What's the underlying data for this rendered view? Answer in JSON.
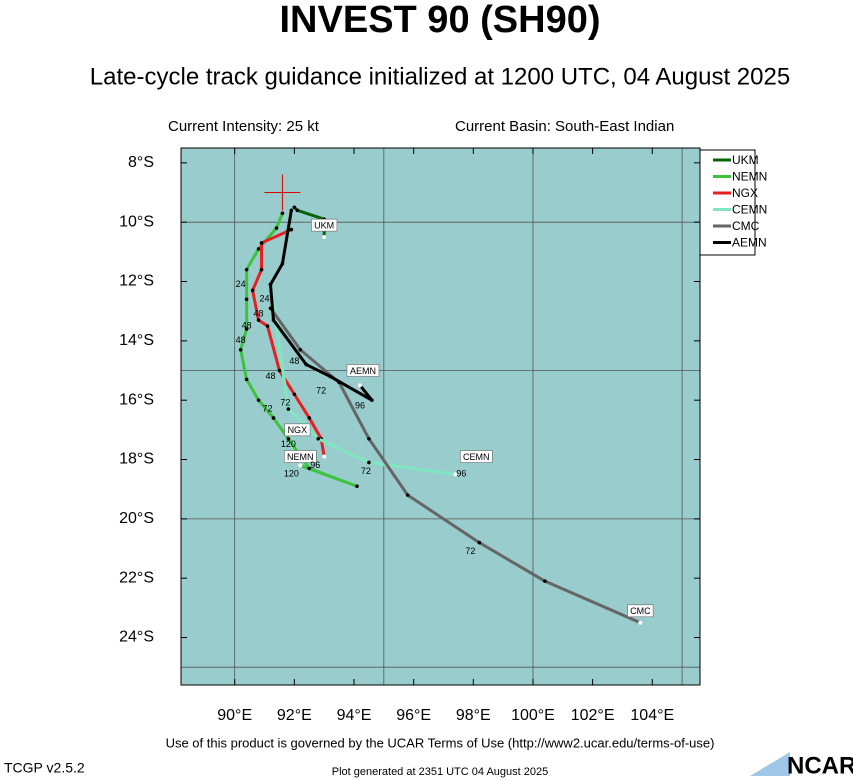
{
  "chart_data": {
    "type": "track",
    "title": "INVEST 90 (SH90)",
    "subtitle": "Late-cycle track guidance initialized at 1200 UTC, 04 August 2025",
    "intensity": "Current Intensity: 25 kt",
    "basin": "Current Basin: South-East Indian",
    "footer": "Use of this product is governed by the UCAR Terms of Use (http://www2.ucar.edu/terms-of-use)",
    "version": "TCGP v2.5.2",
    "generated": "Plot generated at 2351 UTC   04 August 2025",
    "logo": "NCAR",
    "xlim": [
      88.2,
      105.6
    ],
    "ylim": [
      -25.6,
      -7.5
    ],
    "xticks": [
      {
        "value": 90,
        "label": "90°E"
      },
      {
        "value": 92,
        "label": "92°E"
      },
      {
        "value": 94,
        "label": "94°E"
      },
      {
        "value": 96,
        "label": "96°E"
      },
      {
        "value": 98,
        "label": "98°E"
      },
      {
        "value": 100,
        "label": "100°E"
      },
      {
        "value": 102,
        "label": "102°E"
      },
      {
        "value": 104,
        "label": "104°E"
      }
    ],
    "yticks": [
      {
        "value": -8,
        "label": "8°S"
      },
      {
        "value": -10,
        "label": "10°S"
      },
      {
        "value": -12,
        "label": "12°S"
      },
      {
        "value": -14,
        "label": "14°S"
      },
      {
        "value": -16,
        "label": "16°S"
      },
      {
        "value": -18,
        "label": "18°S"
      },
      {
        "value": -20,
        "label": "20°S"
      },
      {
        "value": -22,
        "label": "22°S"
      },
      {
        "value": -24,
        "label": "24°S"
      }
    ],
    "xgrid": [
      90,
      95,
      100,
      105
    ],
    "ygrid": [
      -10,
      -15,
      -20,
      -25
    ],
    "current_position": {
      "lon": 91.6,
      "lat": -9.0
    },
    "series": [
      {
        "name": "UKM",
        "color": "#0a640a",
        "x": [
          92.0,
          92.1,
          93.0,
          93.0
        ],
        "values": [
          -9.5,
          -9.6,
          -9.9,
          -10.5
        ],
        "tag": {
          "lon": 93.0,
          "lat": -10.1
        }
      },
      {
        "name": "NEMN",
        "color": "#3cc33c",
        "x": [
          91.6,
          91.4,
          90.8,
          90.4,
          90.4,
          90.4,
          90.2,
          90.4,
          90.8,
          91.3,
          91.8,
          92.5,
          94.1,
          92.2
        ],
        "values": [
          -9.7,
          -10.2,
          -10.9,
          -11.6,
          -12.6,
          -13.6,
          -14.3,
          -15.3,
          -16.0,
          -16.6,
          -17.3,
          -18.3,
          -18.9,
          -18.2
        ],
        "tag": {
          "lon": 92.2,
          "lat": -17.9
        }
      },
      {
        "name": "NGX",
        "color": "#e62020",
        "x": [
          91.9,
          90.9,
          90.9,
          90.6,
          90.8,
          91.1,
          91.5,
          92.0,
          92.5,
          92.9,
          93.0
        ],
        "values": [
          -10.25,
          -10.7,
          -11.6,
          -12.3,
          -13.3,
          -13.5,
          -15.0,
          -15.8,
          -16.6,
          -17.3,
          -17.9
        ],
        "tag": {
          "lon": 92.1,
          "lat": -17.0
        }
      },
      {
        "name": "CEMN",
        "color": "#7fe7c0",
        "x": [
          91.2,
          91.8,
          92.8,
          94.5,
          97.4
        ],
        "values": [
          -12.1,
          -16.3,
          -17.3,
          -18.1,
          -18.5
        ],
        "tag": {
          "lon": 98.1,
          "lat": -17.9
        }
      },
      {
        "name": "CMC",
        "color": "#666666",
        "x": [
          91.2,
          92.2,
          93.5,
          94.5,
          95.8,
          98.2,
          100.4,
          103.6
        ],
        "values": [
          -12.9,
          -14.3,
          -15.4,
          -17.3,
          -19.2,
          -20.8,
          -22.1,
          -23.5
        ],
        "tag": {
          "lon": 103.6,
          "lat": -23.1
        }
      },
      {
        "name": "AEMN",
        "color": "#000000",
        "x": [
          91.9,
          91.6,
          91.2,
          91.3,
          92.4,
          93.2,
          94.6,
          94.2
        ],
        "values": [
          -9.6,
          -11.4,
          -12.1,
          -13.3,
          -14.8,
          -15.2,
          -16.0,
          -15.5
        ],
        "tag": {
          "lon": 94.3,
          "lat": -15.0
        }
      }
    ],
    "annotations": [
      {
        "text": "24",
        "lon": 90.2,
        "lat": -12.1
      },
      {
        "text": "24",
        "lon": 91.0,
        "lat": -12.6
      },
      {
        "text": "48",
        "lon": 90.4,
        "lat": -13.5
      },
      {
        "text": "48",
        "lon": 90.2,
        "lat": -14.0
      },
      {
        "text": "48",
        "lon": 90.8,
        "lat": -13.1
      },
      {
        "text": "48",
        "lon": 92.0,
        "lat": -14.7
      },
      {
        "text": "48",
        "lon": 91.2,
        "lat": -15.2
      },
      {
        "text": "72",
        "lon": 92.9,
        "lat": -15.7
      },
      {
        "text": "72",
        "lon": 91.7,
        "lat": -16.1
      },
      {
        "text": "72",
        "lon": 91.1,
        "lat": -16.3
      },
      {
        "text": "72",
        "lon": 94.4,
        "lat": -18.4
      },
      {
        "text": "72",
        "lon": 97.9,
        "lat": -21.1
      },
      {
        "text": "96",
        "lon": 94.2,
        "lat": -16.2
      },
      {
        "text": "96",
        "lon": 92.7,
        "lat": -18.2
      },
      {
        "text": "96",
        "lon": 97.6,
        "lat": -18.5
      },
      {
        "text": "120",
        "lon": 91.8,
        "lat": -17.5
      },
      {
        "text": "120",
        "lon": 91.9,
        "lat": -18.5
      }
    ]
  }
}
